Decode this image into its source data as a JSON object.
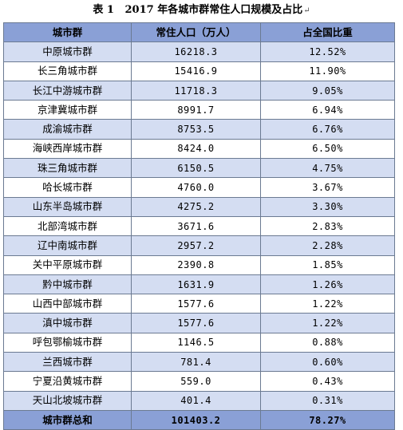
{
  "caption": {
    "number": "表 1",
    "title": "2017 年各城市群常住人口规模及占比",
    "mark": "↵"
  },
  "table": {
    "headers": [
      "城市群",
      "常住人口（万人）",
      "占全国比重"
    ],
    "rows": [
      [
        "中原城市群",
        "16218.3",
        "12.52%"
      ],
      [
        "长三角城市群",
        "15416.9",
        "11.90%"
      ],
      [
        "长江中游城市群",
        "11718.3",
        "9.05%"
      ],
      [
        "京津冀城市群",
        "8991.7",
        "6.94%"
      ],
      [
        "成渝城市群",
        "8753.5",
        "6.76%"
      ],
      [
        "海峡西岸城市群",
        "8424.0",
        "6.50%"
      ],
      [
        "珠三角城市群",
        "6150.5",
        "4.75%"
      ],
      [
        "哈长城市群",
        "4760.0",
        "3.67%"
      ],
      [
        "山东半岛城市群",
        "4275.2",
        "3.30%"
      ],
      [
        "北部湾城市群",
        "3671.6",
        "2.83%"
      ],
      [
        "辽中南城市群",
        "2957.2",
        "2.28%"
      ],
      [
        "关中平原城市群",
        "2390.8",
        "1.85%"
      ],
      [
        "黔中城市群",
        "1631.9",
        "1.26%"
      ],
      [
        "山西中部城市群",
        "1577.6",
        "1.22%"
      ],
      [
        "滇中城市群",
        "1577.6",
        "1.22%"
      ],
      [
        "呼包鄂榆城市群",
        "1146.5",
        "0.88%"
      ],
      [
        "兰西城市群",
        "781.4",
        "0.60%"
      ],
      [
        "宁夏沿黄城市群",
        "559.0",
        "0.43%"
      ],
      [
        "天山北坡城市群",
        "401.4",
        "0.31%"
      ]
    ],
    "total": [
      "城市群总和",
      "101403.2",
      "78.27%"
    ]
  }
}
